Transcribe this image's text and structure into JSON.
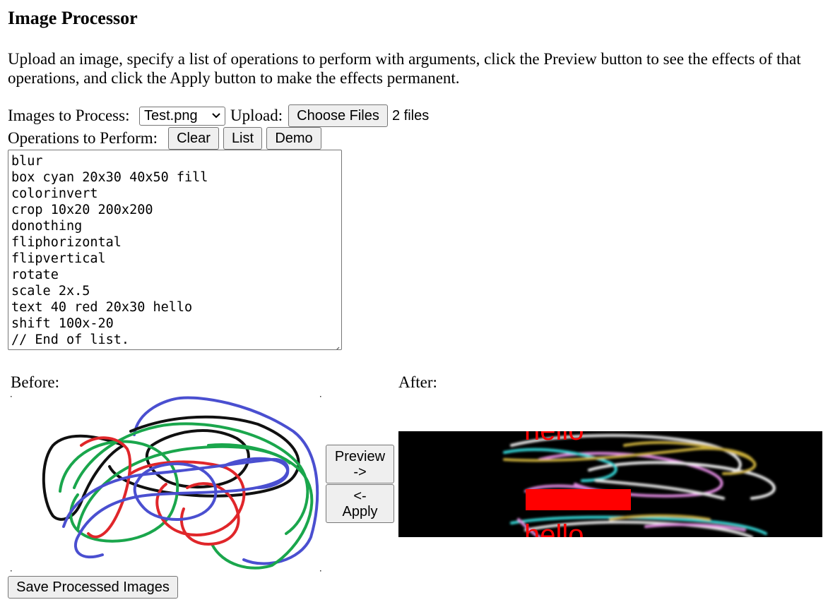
{
  "title": "Image Processor",
  "description": "Upload an image, specify a list of operations to perform with arguments, click the Preview button to see the effects of that operations, and click the Apply button to make the effects permanent.",
  "images": {
    "label": "Images to Process:",
    "selected": "Test.png"
  },
  "upload": {
    "label": "Upload:",
    "button": "Choose Files",
    "status": "2 files"
  },
  "operations": {
    "label": "Operations to Perform:",
    "buttons": {
      "clear": "Clear",
      "list": "List",
      "demo": "Demo"
    },
    "lines": [
      "blur",
      "box cyan 20x30 40x50 fill",
      "colorinvert",
      "crop 10x20 200x200",
      "donothing",
      "fliphorizontal",
      "flipvertical",
      "rotate",
      "scale 2x.5",
      "text 40 red 20x30 hello",
      "shift 100x-20",
      "// End of list."
    ]
  },
  "before": {
    "label": "Before:"
  },
  "after": {
    "label": "After:",
    "overlay_text": "hello",
    "overlay_color": "#ff0000"
  },
  "buttons": {
    "preview": "Preview\n->",
    "apply": "<-\nApply",
    "save": "Save Processed Images"
  }
}
